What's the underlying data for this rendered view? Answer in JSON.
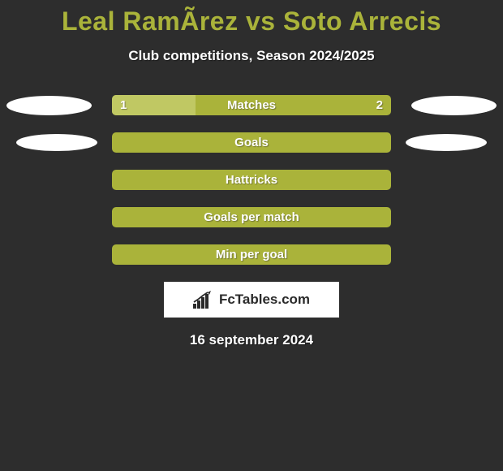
{
  "title": "Leal RamÃ­rez vs Soto Arrecis",
  "subtitle": "Club competitions, Season 2024/2025",
  "date": "16 september 2024",
  "logo_text": "FcTables.com",
  "colors": {
    "background": "#2d2d2d",
    "accent": "#aab33a",
    "bar_fill": "#aab33a",
    "bar_split_left": "#c0c863",
    "text_white": "#ffffff",
    "ellipse": "#ffffff"
  },
  "rows": [
    {
      "label": "Matches",
      "left_value": "1",
      "right_value": "2",
      "has_ellipses": true,
      "ellipse_class": "1",
      "split_percent": 30,
      "split_color": "#c0c863",
      "base_color": "#aab33a"
    },
    {
      "label": "Goals",
      "has_ellipses": true,
      "ellipse_class": "2",
      "base_color": "#aab33a"
    },
    {
      "label": "Hattricks",
      "has_ellipses": false,
      "base_color": "#aab33a"
    },
    {
      "label": "Goals per match",
      "has_ellipses": false,
      "base_color": "#aab33a"
    },
    {
      "label": "Min per goal",
      "has_ellipses": false,
      "base_color": "#aab33a"
    }
  ]
}
